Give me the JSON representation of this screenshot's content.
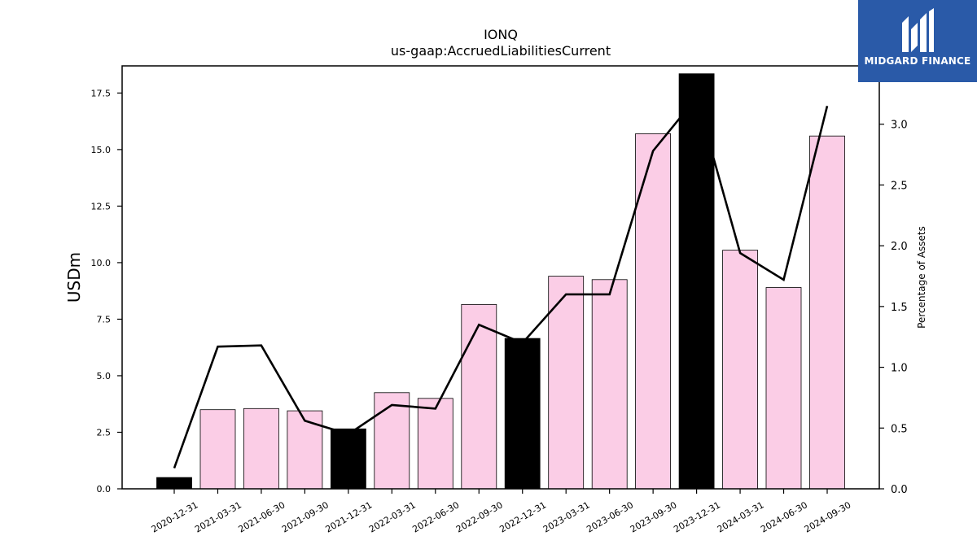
{
  "chart_data": {
    "type": "bar",
    "title": "IONQ",
    "subtitle": "us-gaap:AccruedLiabilitiesCurrent",
    "ylabel": "USDm",
    "y2label": "Percentage of Assets",
    "categories": [
      "2020-12-31",
      "2021-03-31",
      "2021-06-30",
      "2021-09-30",
      "2021-12-31",
      "2022-03-31",
      "2022-06-30",
      "2022-09-30",
      "2022-12-31",
      "2023-03-31",
      "2023-06-30",
      "2023-09-30",
      "2023-12-31",
      "2024-03-31",
      "2024-06-30",
      "2024-09-30"
    ],
    "series": [
      {
        "type": "bar",
        "values": [
          0.5,
          3.5,
          3.55,
          3.45,
          2.65,
          4.25,
          4.0,
          8.15,
          6.65,
          9.4,
          9.25,
          15.7,
          18.35,
          10.55,
          8.9,
          15.6
        ],
        "highlight": [
          true,
          false,
          false,
          false,
          true,
          false,
          false,
          false,
          true,
          false,
          false,
          false,
          true,
          false,
          false,
          false
        ]
      },
      {
        "type": "line",
        "axis": "right",
        "values": [
          0.17,
          1.17,
          1.18,
          0.56,
          0.45,
          0.69,
          0.66,
          1.35,
          1.2,
          1.6,
          1.6,
          2.78,
          3.22,
          1.94,
          1.72,
          3.15
        ]
      }
    ],
    "ylim": [
      0,
      18.7
    ],
    "y2lim": [
      0,
      3.48
    ],
    "yticks": [
      "0.0",
      "2.5",
      "5.0",
      "7.5",
      "10.0",
      "12.5",
      "15.0",
      "17.5"
    ],
    "y2ticks": [
      "0.0",
      "0.5",
      "1.0",
      "1.5",
      "2.0",
      "2.5",
      "3.0"
    ],
    "grid": false,
    "colors": {
      "bar": "#fbcde6",
      "bar_highlight": "#000000",
      "line": "#000000"
    }
  },
  "logo": {
    "text": "MIDGARD FINANCE",
    "color": "#2a5aa8"
  }
}
